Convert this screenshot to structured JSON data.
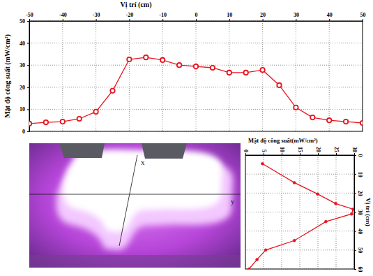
{
  "chart_data": [
    {
      "type": "line",
      "x_label": "Vị trí (cm)",
      "y_label": "Mật độ công suất (mW/cm²)",
      "x": [
        -50,
        -45,
        -40,
        -35,
        -30,
        -25,
        -20,
        -15,
        -10,
        -5,
        0,
        5,
        10,
        15,
        20,
        25,
        30,
        35,
        40,
        45,
        50
      ],
      "values": [
        3.5,
        4.1,
        4.4,
        5.7,
        8.9,
        18.4,
        32.6,
        33.5,
        32.3,
        30,
        29.4,
        28.8,
        26.6,
        26.6,
        27.8,
        20.9,
        10.8,
        6.3,
        5,
        4.4,
        3.8
      ],
      "xlim": [
        -50,
        50
      ],
      "ylim": [
        0,
        50
      ],
      "xticks": [
        -50,
        -40,
        -30,
        -20,
        -10,
        0,
        10,
        20,
        30,
        40,
        50
      ],
      "yticks": [
        0,
        10,
        20,
        30,
        40,
        50
      ],
      "grid": true,
      "color": "#e8131f",
      "marker": "circle"
    },
    {
      "type": "line",
      "orientation": "horizontal",
      "x_label": "Vị trí (cm)",
      "y_label": "Mật độ công suất(mW/cm²)",
      "x": [
        4.5,
        14.5,
        20.5,
        25.5,
        28.5,
        31,
        35,
        45,
        50,
        55,
        60
      ],
      "values": [
        4.7,
        13.5,
        19.9,
        24.9,
        29.7,
        29.3,
        22.2,
        13.5,
        5.6,
        3.2,
        1
      ],
      "xlim": [
        0,
        60
      ],
      "ylim": [
        0,
        30
      ],
      "xticks": [
        0,
        10,
        20,
        30,
        40,
        50,
        60
      ],
      "yticks": [
        0,
        5,
        10,
        15,
        20,
        25,
        30
      ],
      "grid": true,
      "color": "#e8131f",
      "marker": "dot"
    }
  ],
  "photo": {
    "labels": [
      "x",
      "y"
    ]
  }
}
